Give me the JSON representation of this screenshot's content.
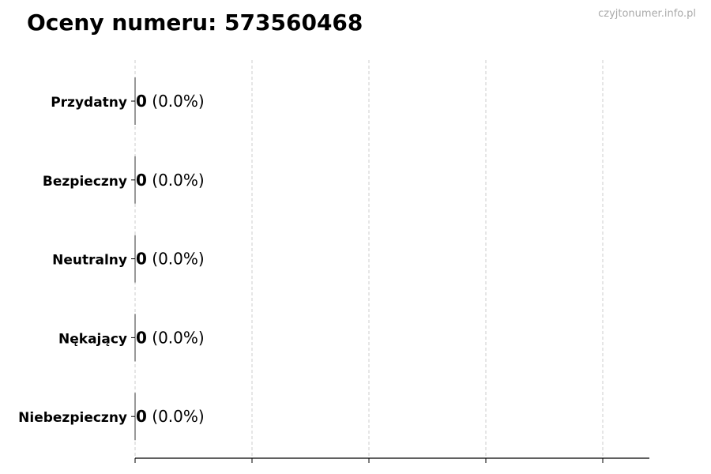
{
  "chart_data": {
    "type": "bar",
    "orientation": "horizontal",
    "title": "Oceny numeru: 573560468",
    "watermark": "czyjtonumer.info.pl",
    "categories": [
      "Przydatny",
      "Bezpieczny",
      "Neutralny",
      "Nękający",
      "Niebezpieczny"
    ],
    "values": [
      0,
      0,
      0,
      0,
      0
    ],
    "percentages": [
      "(0.0%)",
      "(0.0%)",
      "(0.0%)",
      "(0.0%)",
      "(0.0%)"
    ],
    "value_labels": [
      "0",
      "0",
      "0",
      "0",
      "0"
    ],
    "xlabel": "",
    "ylabel": "",
    "x_tick_labels_shown": false,
    "grid": "vertical dashed",
    "colors": {
      "bar_edge": "#333333",
      "grid": "#cccccc",
      "text": "#000000",
      "watermark": "#aaaaaa"
    }
  }
}
